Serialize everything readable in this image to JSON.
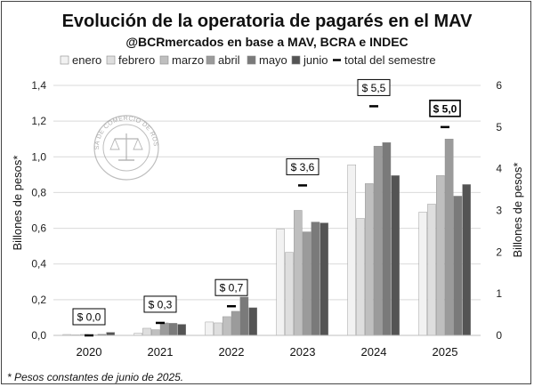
{
  "chart_data": {
    "type": "bar",
    "title": "Evolución de la operatoria de pagarés en el MAV",
    "subtitle": "@BCRmercados en base a MAV, BCRA e INDEC",
    "ylabel": "Billones de pesos*",
    "y2label": "Billones de pesos*",
    "footnote": "* Pesos constantes de junio de 2025.",
    "ylim": [
      0,
      1.4
    ],
    "y2lim": [
      0,
      6
    ],
    "yticks": [
      "0,0",
      "0,2",
      "0,4",
      "0,6",
      "0,8",
      "1,0",
      "1,2",
      "1,4"
    ],
    "y2ticks": [
      "0",
      "1",
      "2",
      "3",
      "4",
      "5",
      "6"
    ],
    "grid": true,
    "legend_position": "top",
    "categories": [
      "2020",
      "2021",
      "2022",
      "2023",
      "2024",
      "2025"
    ],
    "series": [
      {
        "name": "enero",
        "color": "#f2f2f2",
        "values": [
          0.005,
          0.012,
          0.075,
          0.595,
          0.955,
          0.69
        ]
      },
      {
        "name": "febrero",
        "color": "#dedede",
        "values": [
          0.003,
          0.04,
          0.07,
          0.465,
          0.655,
          0.735
        ]
      },
      {
        "name": "marzo",
        "color": "#bfbfbf",
        "values": [
          0.005,
          0.032,
          0.105,
          0.7,
          0.85,
          0.895
        ]
      },
      {
        "name": "abril",
        "color": "#9b9b9b",
        "values": [
          0.003,
          0.07,
          0.135,
          0.58,
          1.06,
          1.1
        ]
      },
      {
        "name": "mayo",
        "color": "#7a7a7a",
        "values": [
          0.006,
          0.068,
          0.215,
          0.635,
          1.08,
          0.78
        ]
      },
      {
        "name": "junio",
        "color": "#545454",
        "values": [
          0.017,
          0.062,
          0.155,
          0.63,
          0.895,
          0.845
        ]
      }
    ],
    "total_series": {
      "name": "total del semestre",
      "axis": "right",
      "values": [
        0.0,
        0.3,
        0.7,
        3.6,
        5.5,
        5.0
      ],
      "labels": [
        "$ 0,0",
        "$ 0,3",
        "$ 0,7",
        "$ 3,6",
        "$ 5,5",
        "$ 5,0"
      ],
      "highlighted": [
        false,
        false,
        false,
        false,
        false,
        true
      ]
    },
    "watermark": "BOLSA DE COMERCIO DE ROSARIO"
  }
}
